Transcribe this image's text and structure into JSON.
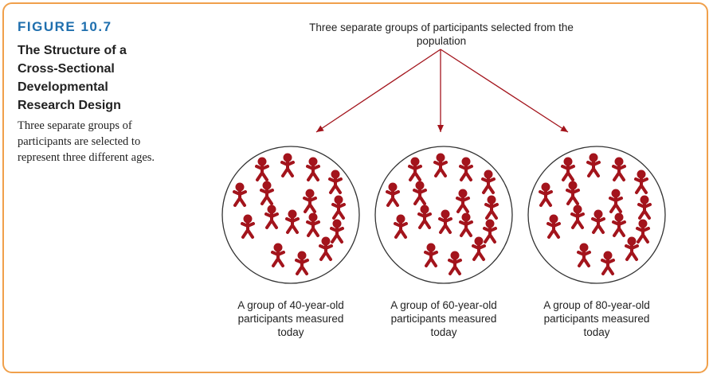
{
  "figure": {
    "number": "FIGURE 10.7",
    "title": "The Structure of a Cross-Sectional Developmental Research Design",
    "description": "Three separate groups of participants are selected to represent three different ages."
  },
  "diagram": {
    "source_label": "Three separate groups of participants selected from the population",
    "groups": [
      {
        "label": "A group of 40-year-old participants measured today"
      },
      {
        "label": "A group of 60-year-old participants measured today"
      },
      {
        "label": "A group of 80-year-old participants measured today"
      }
    ],
    "figure_icon": "person-icon",
    "colors": {
      "accent": "#1f6fae",
      "border": "#f0a04b",
      "person": "#a3141c",
      "arrow": "#a3141c"
    }
  }
}
